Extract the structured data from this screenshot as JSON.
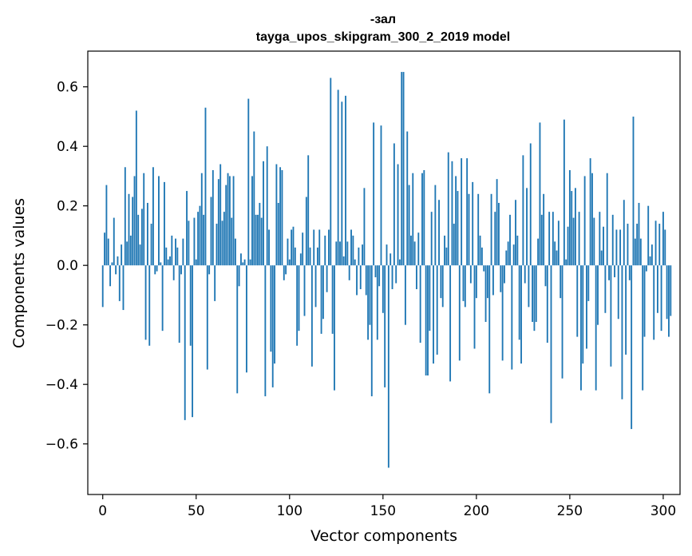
{
  "chart_data": {
    "type": "bar",
    "title": "-зал",
    "subtitle": "tayga_upos_skipgram_300_2_2019 model",
    "xlabel": "Vector components",
    "ylabel": "Components values",
    "xlim": [
      -8,
      309
    ],
    "ylim": [
      -0.77,
      0.72
    ],
    "x_ticks": [
      0,
      50,
      100,
      150,
      200,
      250,
      300
    ],
    "x_tick_labels": [
      "0",
      "50",
      "100",
      "150",
      "200",
      "250",
      "300"
    ],
    "y_ticks": [
      -0.6,
      -0.4,
      -0.2,
      0.0,
      0.2,
      0.4,
      0.6
    ],
    "y_tick_labels": [
      "−0.6",
      "−0.4",
      "−0.2",
      "0.0",
      "0.2",
      "0.4",
      "0.6"
    ],
    "bar_color": "#1f77b4",
    "series": [
      {
        "name": "components",
        "values": [
          -0.14,
          0.11,
          0.27,
          0.09,
          -0.07,
          0.01,
          0.16,
          -0.03,
          0.03,
          -0.12,
          0.07,
          -0.15,
          0.33,
          0.08,
          0.24,
          0.1,
          0.23,
          0.3,
          0.52,
          0.17,
          0.07,
          0.19,
          0.31,
          -0.25,
          0.21,
          -0.27,
          0.14,
          0.33,
          -0.03,
          -0.02,
          0.3,
          0.01,
          -0.22,
          0.28,
          0.06,
          0.02,
          0.03,
          0.1,
          -0.05,
          0.09,
          0.06,
          -0.26,
          -0.03,
          0.09,
          -0.52,
          0.25,
          0.15,
          -0.27,
          -0.51,
          0.16,
          0.02,
          0.18,
          0.2,
          0.31,
          0.17,
          0.53,
          -0.35,
          -0.03,
          0.23,
          0.32,
          -0.12,
          0.14,
          0.29,
          0.34,
          0.15,
          0.18,
          0.27,
          0.31,
          0.3,
          0.16,
          0.3,
          0.09,
          -0.43,
          -0.07,
          0.04,
          0.01,
          0.02,
          -0.36,
          0.56,
          0.02,
          0.3,
          0.45,
          0.17,
          0.17,
          0.21,
          0.16,
          0.35,
          -0.44,
          0.4,
          0.12,
          -0.29,
          -0.41,
          -0.33,
          0.34,
          0.21,
          0.33,
          0.32,
          -0.05,
          -0.03,
          0.09,
          0.02,
          0.12,
          0.13,
          0.06,
          -0.27,
          -0.22,
          0.04,
          0.11,
          -0.17,
          0.23,
          0.37,
          0.06,
          -0.34,
          0.12,
          -0.14,
          0.06,
          0.12,
          -0.23,
          -0.18,
          0.1,
          -0.09,
          0.12,
          0.63,
          -0.23,
          -0.42,
          0.08,
          0.59,
          0.08,
          0.55,
          0.03,
          0.57,
          0.08,
          -0.05,
          0.12,
          0.1,
          0.02,
          -0.1,
          0.06,
          -0.08,
          0.07,
          0.26,
          -0.1,
          -0.25,
          -0.2,
          -0.44,
          0.48,
          -0.04,
          -0.25,
          -0.07,
          0.47,
          -0.16,
          -0.41,
          0.07,
          -0.68,
          0.04,
          -0.08,
          0.41,
          -0.06,
          0.34,
          0.02,
          0.65,
          0.65,
          -0.2,
          0.45,
          0.27,
          0.1,
          0.31,
          0.08,
          -0.08,
          0.11,
          -0.26,
          0.31,
          0.32,
          -0.37,
          -0.37,
          -0.22,
          0.18,
          -0.33,
          0.27,
          -0.3,
          0.22,
          -0.11,
          -0.14,
          0.1,
          0.06,
          0.38,
          -0.39,
          0.35,
          0.14,
          0.3,
          0.25,
          -0.32,
          0.36,
          -0.12,
          -0.14,
          0.36,
          0.24,
          -0.06,
          0.28,
          -0.28,
          -0.11,
          0.24,
          0.1,
          0.06,
          -0.02,
          -0.19,
          -0.11,
          -0.43,
          0.24,
          -0.1,
          0.18,
          0.29,
          0.21,
          -0.09,
          -0.32,
          -0.06,
          0.05,
          0.08,
          0.17,
          -0.35,
          0.07,
          0.22,
          0.1,
          -0.25,
          -0.33,
          0.37,
          -0.06,
          0.26,
          -0.14,
          0.41,
          -0.19,
          -0.22,
          -0.19,
          0.09,
          0.48,
          0.17,
          0.24,
          -0.07,
          -0.26,
          0.18,
          -0.53,
          0.18,
          0.08,
          0.05,
          0.15,
          -0.11,
          -0.38,
          0.49,
          0.02,
          0.13,
          0.32,
          0.25,
          0.16,
          0.26,
          -0.24,
          0.18,
          -0.42,
          -0.33,
          0.3,
          -0.28,
          -0.12,
          0.36,
          0.31,
          0.16,
          -0.42,
          -0.2,
          0.18,
          0.05,
          0.13,
          -0.16,
          0.31,
          -0.05,
          -0.34,
          0.17,
          -0.04,
          0.12,
          -0.18,
          0.12,
          -0.45,
          0.22,
          -0.3,
          0.14,
          -0.05,
          -0.55,
          0.5,
          0.09,
          0.14,
          0.21,
          0.09,
          -0.42,
          -0.24,
          -0.02,
          0.2,
          0.03,
          0.07,
          -0.25,
          0.15,
          -0.16,
          0.14,
          -0.22,
          0.18,
          0.12,
          -0.18,
          -0.24,
          -0.17
        ]
      }
    ]
  }
}
